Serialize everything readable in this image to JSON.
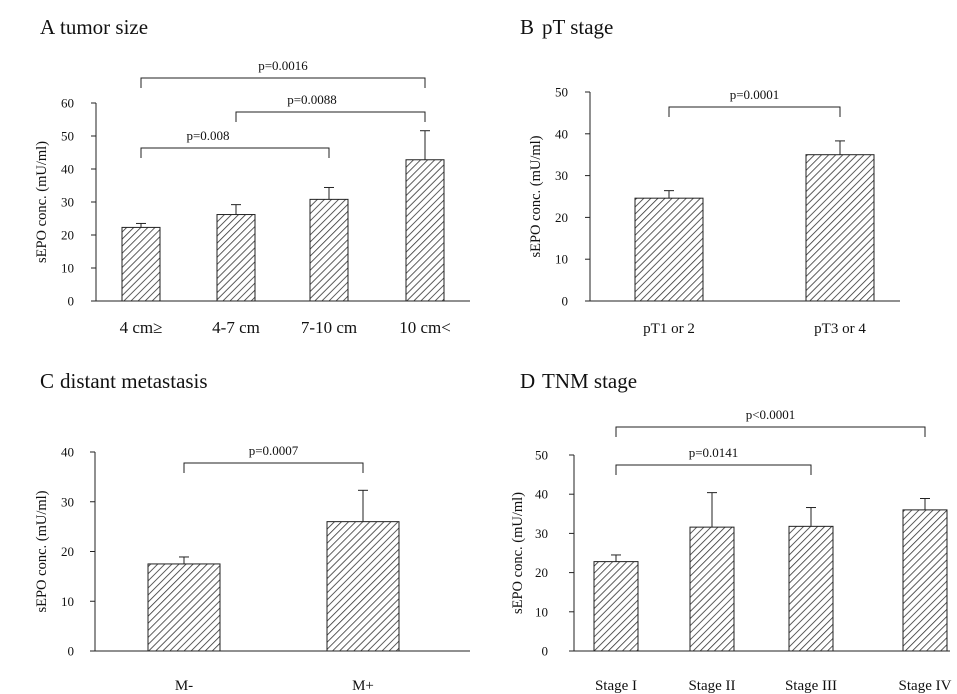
{
  "figure": {
    "panels": [
      {
        "letter": "A",
        "title": "tumor size"
      },
      {
        "letter": "B",
        "title": "pT stage"
      },
      {
        "letter": "C",
        "title": "distant metastasis"
      },
      {
        "letter": "D",
        "title": "TNM stage"
      }
    ]
  },
  "colors": {
    "bar_edge": "#222222",
    "hatch": "#333333",
    "background": "#ffffff"
  },
  "chart_data": [
    {
      "type": "bar",
      "title": "A  tumor size",
      "ylabel": "sEPO conc. (mU/ml)",
      "categories": [
        "4 cm≥",
        "4-7 cm",
        "7-10 cm",
        "10 cm<"
      ],
      "values": [
        22.3,
        26.2,
        30.8,
        42.8
      ],
      "errors": [
        1.2,
        3.0,
        3.6,
        8.8
      ],
      "ylim": [
        0,
        60
      ],
      "yticks": [
        0,
        10,
        20,
        30,
        40,
        50,
        60
      ],
      "fill": "diagonal hatch",
      "grid": false,
      "significance": [
        {
          "from": 0,
          "to": 3,
          "label": "p=0.0016"
        },
        {
          "from": 1,
          "to": 3,
          "label": "p=0.0088"
        },
        {
          "from": 0,
          "to": 2,
          "label": "p=0.008"
        }
      ]
    },
    {
      "type": "bar",
      "title": "B  pT stage",
      "ylabel": "sEPO conc. (mU/ml)",
      "categories": [
        "pT1 or 2",
        "pT3 or 4"
      ],
      "values": [
        24.6,
        35.0
      ],
      "errors": [
        1.8,
        3.3
      ],
      "ylim": [
        0,
        50
      ],
      "yticks": [
        0,
        10,
        20,
        30,
        40,
        50
      ],
      "fill": "diagonal hatch",
      "grid": false,
      "significance": [
        {
          "from": 0,
          "to": 1,
          "label": "p=0.0001"
        }
      ]
    },
    {
      "type": "bar",
      "title": "C  distant metastasis",
      "ylabel": "sEPO conc. (mU/ml)",
      "categories": [
        "M-",
        "M+"
      ],
      "values": [
        17.5,
        26.0
      ],
      "errors": [
        1.4,
        6.3
      ],
      "ylim": [
        0,
        40
      ],
      "yticks": [
        0,
        10,
        20,
        30,
        40
      ],
      "fill": "diagonal hatch",
      "grid": false,
      "significance": [
        {
          "from": 0,
          "to": 1,
          "label": "p=0.0007"
        }
      ]
    },
    {
      "type": "bar",
      "title": "D  TNM stage",
      "ylabel": "sEPO conc. (mU/ml)",
      "categories": [
        "Stage I",
        "Stage II",
        "Stage III",
        "Stage IV"
      ],
      "values": [
        22.8,
        31.6,
        31.8,
        36.0
      ],
      "errors": [
        1.7,
        8.8,
        4.8,
        2.9
      ],
      "ylim": [
        0,
        50
      ],
      "yticks": [
        0,
        10,
        20,
        30,
        40,
        50
      ],
      "fill": "diagonal hatch",
      "grid": false,
      "significance": [
        {
          "from": 0,
          "to": 3,
          "label": "p<0.0001"
        },
        {
          "from": 0,
          "to": 2,
          "label": "p=0.0141"
        }
      ]
    }
  ]
}
